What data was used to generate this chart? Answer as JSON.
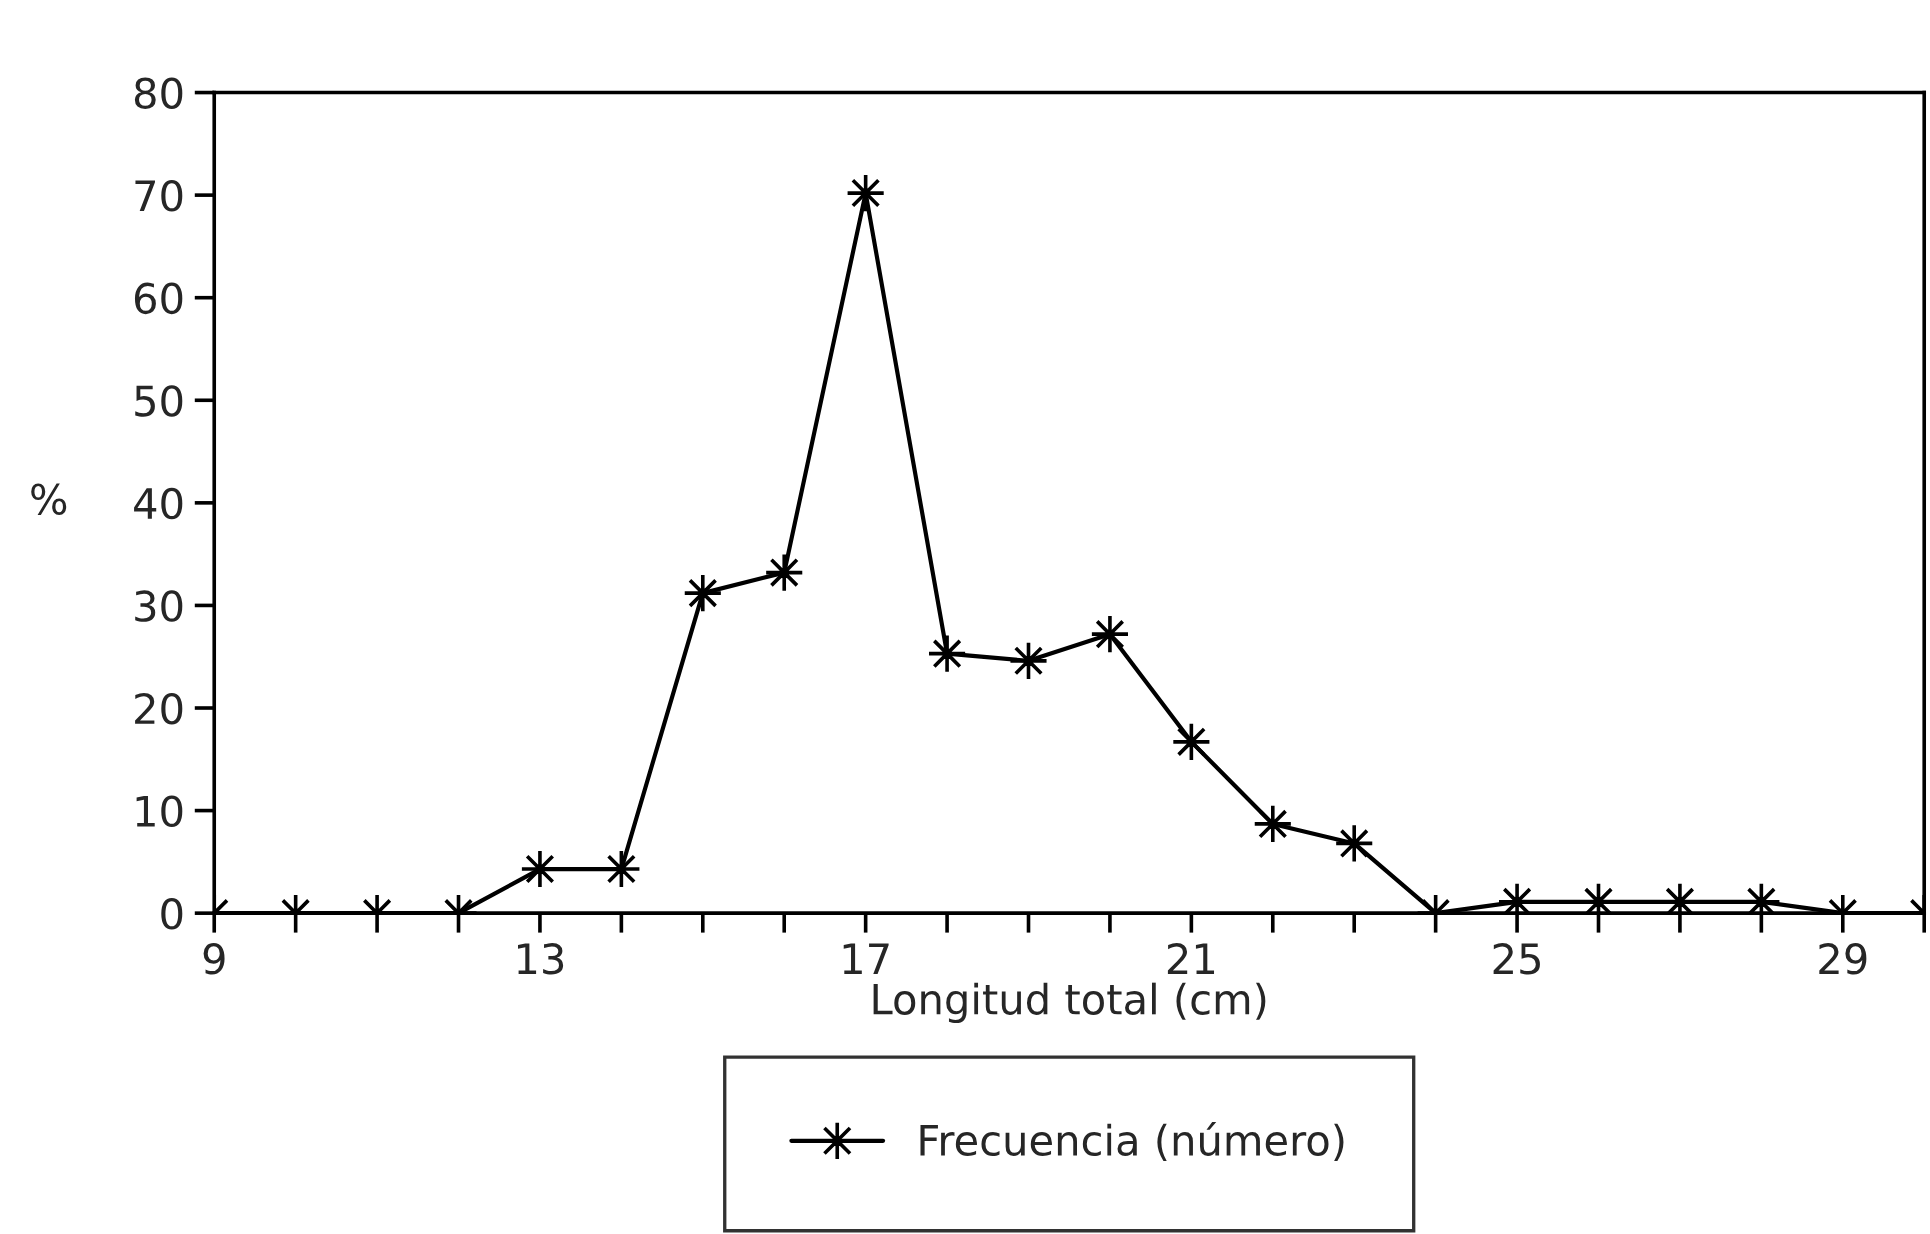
{
  "chart_data": {
    "type": "line",
    "xlabel": "Longitud total (cm)",
    "ylabel": "%",
    "x": [
      9,
      10,
      11,
      12,
      13,
      14,
      15,
      16,
      17,
      18,
      19,
      20,
      21,
      22,
      23,
      24,
      25,
      26,
      27,
      28,
      29,
      30
    ],
    "series": [
      {
        "name": "Frecuencia (número)",
        "color": "#000000",
        "values": [
          0,
          0,
          0,
          0,
          4.3,
          4.3,
          31.2,
          33.2,
          70.2,
          25.3,
          24.6,
          27.2,
          16.7,
          8.7,
          6.8,
          0,
          1.1,
          1.1,
          1.1,
          1.1,
          0,
          0
        ]
      }
    ],
    "xlim": [
      9,
      30
    ],
    "ylim": [
      0,
      80
    ],
    "xticks": [
      9,
      {
        "value": 10,
        "label": null
      },
      {
        "value": 11,
        "label": null
      },
      {
        "value": 12,
        "label": null
      },
      13,
      {
        "value": 14,
        "label": null
      },
      {
        "value": 15,
        "label": null
      },
      {
        "value": 16,
        "label": null
      },
      17,
      {
        "value": 18,
        "label": null
      },
      {
        "value": 19,
        "label": null
      },
      {
        "value": 20,
        "label": null
      },
      21,
      {
        "value": 22,
        "label": null
      },
      {
        "value": 23,
        "label": null
      },
      {
        "value": 24,
        "label": null
      },
      25,
      {
        "value": 26,
        "label": null
      },
      {
        "value": 27,
        "label": null
      },
      {
        "value": 28,
        "label": null
      },
      29,
      {
        "value": 30,
        "label": null
      }
    ],
    "yticks": [
      0,
      10,
      20,
      30,
      40,
      50,
      60,
      70,
      80
    ],
    "marker": "star",
    "line_style": "solid",
    "grid": false,
    "legend": "bottom"
  }
}
